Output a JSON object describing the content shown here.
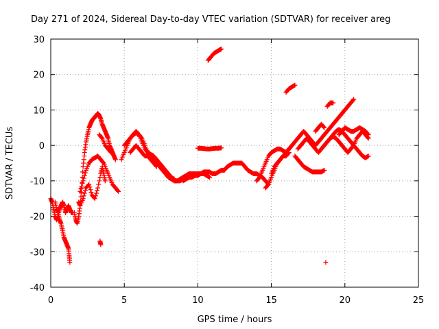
{
  "chart_data": {
    "type": "scatter",
    "title": "Day 271 of 2024, Sidereal Day-to-day VTEC variation (SDTVAR) for receiver areg",
    "xlabel": "GPS time / hours",
    "ylabel": "SDTVAR / TECUs",
    "xlim": [
      0,
      25
    ],
    "ylim": [
      -40,
      30
    ],
    "xticks": [
      0,
      5,
      10,
      15,
      20,
      25
    ],
    "xtick_labels": [
      "0",
      "5",
      "10",
      "15",
      "20",
      "25"
    ],
    "yticks": [
      -40,
      -30,
      -20,
      -10,
      0,
      10,
      20,
      30
    ],
    "ytick_labels": [
      "-40",
      "-30",
      "-20",
      "-10",
      "0",
      "10",
      "20",
      "30"
    ],
    "grid": true,
    "marker": "+",
    "color": "#ff0000",
    "series": [
      {
        "name": "s1",
        "x": [
          0.0,
          0.1,
          0.2,
          0.3,
          0.4,
          0.5,
          0.6,
          0.7,
          0.8,
          0.9,
          1.0,
          1.1,
          1.2,
          1.3,
          1.4,
          1.5
        ],
        "y": [
          -15,
          -16,
          -18,
          -20,
          -21,
          -20,
          -18,
          -17,
          -16,
          -17,
          -19,
          -18,
          -17,
          -18,
          -19,
          -19
        ]
      },
      {
        "name": "s2",
        "x": [
          0.3,
          0.4,
          0.5,
          0.6,
          0.7,
          0.8,
          0.9,
          1.0,
          1.1,
          1.2,
          1.25,
          1.3
        ],
        "y": [
          -16,
          -18,
          -19,
          -21,
          -22,
          -24,
          -26,
          -27,
          -28,
          -29,
          -31,
          -33
        ]
      },
      {
        "name": "s3",
        "x": [
          1.6,
          1.7,
          1.8,
          1.9,
          2.0,
          2.1,
          2.2,
          2.3,
          2.4,
          2.5,
          2.6,
          2.7,
          2.8,
          2.9,
          3.0,
          3.1,
          3.2,
          3.3,
          3.4,
          3.5,
          3.6,
          3.7,
          3.8,
          3.9,
          4.0,
          4.1,
          4.2,
          4.3,
          4.4
        ],
        "y": [
          -19,
          -21,
          -22,
          -20,
          -17,
          -12,
          -6,
          -2,
          1,
          3,
          5,
          6,
          7,
          7.5,
          8,
          8.5,
          9,
          8.5,
          7.5,
          6,
          5,
          4,
          3,
          2,
          0,
          -1,
          -2,
          -3,
          -4
        ]
      },
      {
        "name": "s4",
        "x": [
          2.0,
          2.2,
          2.4,
          2.6,
          2.8,
          3.0,
          3.2,
          3.4,
          3.6,
          3.8,
          4.0,
          4.2,
          4.4,
          4.6
        ],
        "y": [
          -13,
          -10,
          -7,
          -5,
          -4,
          -3.5,
          -3,
          -4,
          -5,
          -7,
          -9,
          -11,
          -12,
          -13
        ]
      },
      {
        "name": "s5",
        "x": [
          1.9,
          2.0,
          2.2,
          2.4,
          2.6,
          2.8,
          3.0,
          3.2,
          3.4,
          3.5,
          3.6,
          3.7
        ],
        "y": [
          -16,
          -17,
          -15,
          -12,
          -11,
          -14,
          -15,
          -12,
          -8,
          -6,
          -8,
          -10
        ]
      },
      {
        "name": "s6",
        "x": [
          3.3,
          3.5,
          3.7,
          3.9,
          4.1
        ],
        "y": [
          3,
          2,
          0,
          -1,
          -2
        ]
      },
      {
        "name": "s7",
        "x": [
          3.35,
          3.4
        ],
        "y": [
          -27,
          -28
        ]
      },
      {
        "name": "s8",
        "x": [
          4.8,
          5.0,
          5.2,
          5.4,
          5.6,
          5.8,
          6.0,
          6.2,
          6.4,
          6.6,
          6.8,
          7.0,
          7.2,
          7.4,
          7.6,
          7.8,
          8.0,
          8.2,
          8.4,
          8.6,
          8.8,
          9.0
        ],
        "y": [
          -4,
          -2,
          0,
          2,
          3,
          4,
          3,
          2,
          0,
          -2,
          -3,
          -4,
          -5,
          -6,
          -7,
          -8,
          -9,
          -9.5,
          -10,
          -10,
          -10,
          -9.5
        ]
      },
      {
        "name": "s9",
        "x": [
          5.0,
          5.2,
          5.4,
          5.6,
          5.8,
          6.0,
          6.2,
          6.4,
          6.6,
          6.8,
          7.0,
          7.2,
          7.4,
          7.6,
          7.8,
          8.0,
          8.2,
          8.4
        ],
        "y": [
          0,
          1,
          2,
          3,
          3.5,
          3,
          1,
          -1,
          -2,
          -2.5,
          -3,
          -4,
          -5,
          -6,
          -7,
          -8,
          -9,
          -9.5
        ]
      },
      {
        "name": "s10",
        "x": [
          5.4,
          5.6,
          5.8,
          6.0,
          6.2,
          6.4,
          6.6,
          6.8,
          7.0,
          7.2
        ],
        "y": [
          -2,
          -1,
          0,
          -1,
          -2,
          -3,
          -3,
          -4,
          -5,
          -6
        ]
      },
      {
        "name": "s11",
        "x": [
          8.4,
          8.6,
          8.8,
          9.0,
          9.2,
          9.4,
          9.6,
          9.8,
          10.0,
          10.2,
          10.4,
          10.6,
          10.8,
          11.0,
          11.2,
          11.4,
          11.6,
          11.8
        ],
        "y": [
          -10,
          -10,
          -9.5,
          -9,
          -8.5,
          -8,
          -8,
          -8,
          -8,
          -8,
          -7.5,
          -7.5,
          -7.5,
          -8,
          -8,
          -7.5,
          -7,
          -7
        ]
      },
      {
        "name": "s12",
        "x": [
          9.0,
          9.2,
          9.4,
          9.6,
          9.8,
          10.0,
          10.2,
          10.4,
          10.6,
          10.8
        ],
        "y": [
          -10,
          -9.5,
          -9,
          -9,
          -8.5,
          -8.5,
          -8,
          -8,
          -8.5,
          -9
        ]
      },
      {
        "name": "s13",
        "x": [
          11.8,
          12.0,
          12.2,
          12.4,
          12.6,
          12.8,
          13.0,
          13.2,
          13.4,
          13.6,
          13.8,
          14.0,
          14.2,
          14.4,
          14.6,
          14.8
        ],
        "y": [
          -7,
          -6,
          -5.5,
          -5,
          -5,
          -5,
          -5,
          -6,
          -7,
          -7.5,
          -8,
          -8,
          -8.5,
          -9,
          -10,
          -11
        ]
      },
      {
        "name": "s14",
        "x": [
          10.0,
          10.2,
          10.4,
          10.6,
          10.8,
          11.0,
          11.2,
          11.4,
          11.6
        ],
        "y": [
          -0.8,
          -0.8,
          -0.9,
          -1,
          -1,
          -0.9,
          -0.8,
          -0.8,
          -0.7
        ]
      },
      {
        "name": "s15",
        "x": [
          10.7,
          10.9,
          11.1,
          11.3,
          11.5,
          11.6
        ],
        "y": [
          24,
          25,
          26,
          26.5,
          27,
          27.2
        ]
      },
      {
        "name": "s16",
        "x": [
          14.0,
          14.2,
          14.4,
          14.6,
          14.8,
          15.0,
          15.2,
          15.4,
          15.6,
          15.8,
          16.0,
          16.2,
          16.4
        ],
        "y": [
          -10,
          -9,
          -7,
          -5,
          -3,
          -2,
          -1.5,
          -1,
          -1,
          -1.5,
          -2,
          -1,
          0
        ]
      },
      {
        "name": "s17",
        "x": [
          14.6,
          14.8,
          15.0,
          15.2,
          15.4,
          15.6,
          15.8,
          16.0,
          16.2,
          16.4,
          16.6,
          16.8
        ],
        "y": [
          -12,
          -11,
          -9,
          -7,
          -5,
          -4,
          -3,
          -2,
          -1,
          0,
          1,
          2
        ]
      },
      {
        "name": "s18",
        "x": [
          15.0,
          15.2,
          15.4,
          15.6,
          15.8,
          16.0,
          16.2
        ],
        "y": [
          -8,
          -6,
          -5,
          -4,
          -3,
          -3,
          -2
        ]
      },
      {
        "name": "s19",
        "x": [
          16.0,
          16.2,
          16.4,
          16.6
        ],
        "y": [
          15,
          16,
          16.5,
          17
        ]
      },
      {
        "name": "s20",
        "x": [
          16.6,
          16.8,
          17.0,
          17.2,
          17.4,
          17.6,
          17.8,
          18.0,
          18.2,
          18.4,
          18.6
        ],
        "y": [
          -3,
          -4,
          -5,
          -6,
          -6.5,
          -7,
          -7.5,
          -7.5,
          -7.5,
          -7.5,
          -7
        ]
      },
      {
        "name": "s21",
        "x": [
          16.8,
          17.0,
          17.2,
          17.4,
          17.6,
          17.8,
          18.0,
          18.2,
          18.4,
          18.6,
          18.8,
          19.0,
          19.2,
          19.4,
          19.6,
          19.8,
          20.0,
          20.2,
          20.4,
          20.6
        ],
        "y": [
          2,
          3,
          4,
          3,
          2,
          1,
          0,
          1,
          2,
          3,
          4,
          5,
          6,
          7,
          8,
          9,
          10,
          11,
          12,
          13
        ]
      },
      {
        "name": "s22",
        "x": [
          16.8,
          17.0,
          17.2,
          17.4,
          17.6,
          17.8,
          18.0,
          18.2,
          18.4,
          18.6,
          18.8,
          19.0,
          19.2,
          19.4,
          19.6,
          19.8,
          20.0,
          20.2,
          20.4,
          20.6,
          20.8,
          21.0,
          21.2,
          21.4,
          21.6
        ],
        "y": [
          -1,
          0,
          1,
          2,
          1,
          0,
          -1,
          -2,
          -1,
          0,
          1,
          2,
          3,
          4,
          4.5,
          4,
          3,
          2,
          1,
          0,
          -1,
          -2,
          -3,
          -3.5,
          -3
        ]
      },
      {
        "name": "s23",
        "x": [
          18.4,
          18.6,
          18.8,
          19.0,
          19.2,
          19.4,
          19.6,
          19.8,
          20.0,
          20.2,
          20.4,
          20.6,
          20.8,
          21.0,
          21.2,
          21.4,
          21.6
        ],
        "y": [
          -1,
          0,
          1,
          2,
          2.5,
          2,
          1,
          0,
          -1,
          -2,
          -1,
          0,
          2,
          3,
          4,
          3,
          2
        ]
      },
      {
        "name": "s24",
        "x": [
          18.0,
          18.2,
          18.4,
          18.6
        ],
        "y": [
          4,
          5,
          6,
          5
        ]
      },
      {
        "name": "s25",
        "x": [
          19.6,
          19.8,
          20.0,
          20.2,
          20.4,
          20.6,
          20.8,
          21.0,
          21.2,
          21.4,
          21.6
        ],
        "y": [
          3,
          4,
          5,
          4.5,
          4,
          4,
          4.5,
          5,
          4.5,
          4,
          3
        ]
      },
      {
        "name": "s26",
        "x": [
          18.8,
          19.0,
          19.2
        ],
        "y": [
          11,
          12,
          12
        ]
      },
      {
        "name": "s27",
        "x": [
          18.7
        ],
        "y": [
          -33
        ]
      }
    ]
  }
}
